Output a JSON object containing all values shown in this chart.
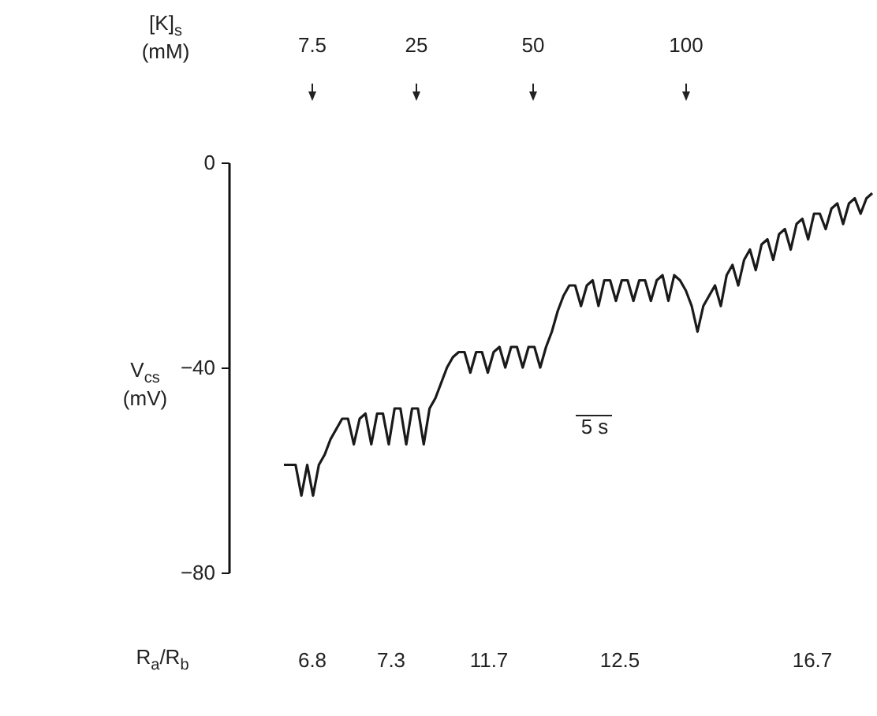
{
  "chart_data": {
    "type": "line",
    "ylabel": "V$_{cs}$ (mV)",
    "annotations": [
      "[K]$_{s}$ (mM)",
      "7.5",
      "25",
      "50",
      "100",
      "5 s",
      "R$_{a}$/R$_{b}$",
      "6.8",
      "7.3",
      "11.7",
      "12.5",
      "16.7"
    ],
    "categories": [
      null,
      null,
      null,
      null,
      null,
      null,
      null,
      null,
      null,
      null,
      null,
      null,
      null,
      null,
      null,
      null,
      null,
      null,
      null,
      null,
      null,
      null,
      null,
      null,
      null,
      null,
      null,
      null,
      null,
      null,
      null,
      null,
      null,
      null,
      null,
      null,
      null,
      null,
      null,
      null,
      null,
      null,
      null,
      null,
      null,
      null,
      null,
      null,
      null,
      null,
      null,
      null,
      null,
      null,
      null,
      null,
      null,
      null,
      null,
      null,
      null,
      null,
      null,
      null,
      null,
      null,
      null,
      null,
      null,
      null,
      null,
      null,
      null,
      null,
      null,
      null,
      null,
      null,
      null,
      null,
      null,
      null,
      null,
      null,
      null,
      null,
      null,
      null,
      null,
      null,
      null,
      null,
      null,
      null,
      null,
      null,
      null,
      null,
      null,
      null,
      null,
      null
    ],
    "values": [
      -59,
      -59,
      -59,
      -65,
      -59,
      -65,
      -59,
      -57,
      -54,
      -52,
      -50,
      -50,
      -55,
      -50,
      -49,
      -55,
      -49,
      -49,
      -55,
      -48,
      -48,
      -55,
      -48,
      -48,
      -55,
      -48,
      -46,
      -43,
      -40,
      -38,
      -37,
      -37,
      -41,
      -37,
      -37,
      -41,
      -37,
      -36,
      -40,
      -36,
      -36,
      -40,
      -36,
      -36,
      -40,
      -36,
      -33,
      -29,
      -26,
      -24,
      -24,
      -28,
      -24,
      -23,
      -28,
      -23,
      -23,
      -27,
      -23,
      -23,
      -27,
      -23,
      -23,
      -27,
      -23,
      -22,
      -27,
      -22,
      -23,
      -25,
      -28,
      -33,
      -28,
      -26,
      -24,
      -28,
      -22,
      -20,
      -24,
      -19,
      -17,
      -21,
      -16,
      -15,
      -19,
      -14,
      -13,
      -17,
      -12,
      -11,
      -15,
      -10,
      -10,
      -13,
      -9,
      -8,
      -12,
      -8,
      -7,
      -10,
      -7,
      -6
    ],
    "color": "#1a1a1a",
    "ylim": [
      -80,
      0
    ],
    "yticks": [
      0,
      -40,
      -80
    ],
    "tick_labels": "y"
  }
}
